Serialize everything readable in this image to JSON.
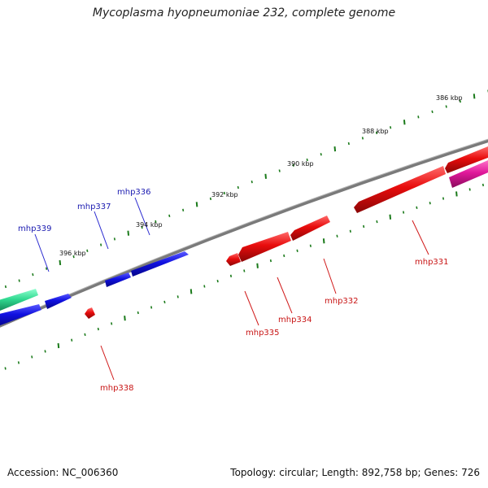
{
  "title": "Mycoplasma hyopneumoniae 232, complete genome",
  "footer": {
    "accession": "Accession: NC_006360",
    "stats": "Topology: circular; Length: 892,758 bp; Genes: 726"
  },
  "colors": {
    "forward_gene": "#1010e0",
    "reverse_gene": "#e80c0c",
    "rna_gene": "#30d890",
    "other_gene": "#e0189a",
    "backbone": "#7a7a7a",
    "tick": "#1a7a1a",
    "forward_label": "#1a1ab0",
    "reverse_label": "#c81414"
  },
  "scale_labels": [
    "386 kbp",
    "388 kbp",
    "390 kbp",
    "392 kbp",
    "394 kbp",
    "396 kbp"
  ],
  "gene_labels": [
    {
      "name": "mhp336",
      "strand": "forward"
    },
    {
      "name": "mhp337",
      "strand": "forward"
    },
    {
      "name": "mhp339",
      "strand": "forward"
    },
    {
      "name": "mhp331",
      "strand": "reverse"
    },
    {
      "name": "mhp332",
      "strand": "reverse"
    },
    {
      "name": "mhp334",
      "strand": "reverse"
    },
    {
      "name": "mhp335",
      "strand": "reverse"
    },
    {
      "name": "mhp338",
      "strand": "reverse"
    }
  ]
}
